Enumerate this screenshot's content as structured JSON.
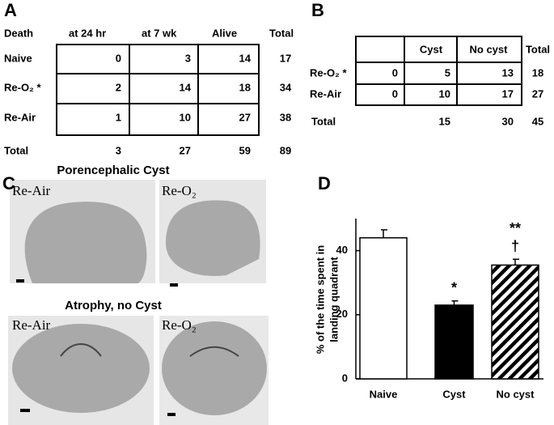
{
  "panel_a": {
    "label": "A",
    "headers": [
      "Death",
      "at 24 hr",
      "at 7 wk",
      "Alive",
      "Total"
    ],
    "rows": [
      [
        "Naive",
        0,
        3,
        14,
        17
      ],
      [
        "Re-O₂ *",
        2,
        14,
        18,
        34
      ],
      [
        "Re-Air",
        1,
        10,
        27,
        38
      ],
      [
        "Total",
        3,
        27,
        59,
        89
      ]
    ]
  },
  "panel_b": {
    "label": "B",
    "headers": [
      "Cyst",
      "No cyst",
      "Total"
    ],
    "rows": [
      [
        "Re-O₂ *",
        0,
        5,
        13,
        18
      ],
      [
        "Re-Air",
        0,
        10,
        17,
        27
      ]
    ],
    "total_row": [
      "Total",
      15,
      30,
      45
    ]
  },
  "panel_c": {
    "label": "C",
    "title_top": "Porencephalic Cyst",
    "title_bottom": "Atrophy, no Cyst",
    "image_labels": [
      "Re-Air",
      "Re-O₂",
      "Re-Air",
      "Re-O₂"
    ]
  },
  "chart_data": {
    "type": "bar",
    "label": "D",
    "y_label": [
      "% of the  time spent in",
      "landing quadrant"
    ],
    "categories": [
      "Naive",
      "Cyst",
      "No cyst"
    ],
    "values": [
      44,
      23,
      35.5
    ],
    "errors": [
      2.5,
      1.3,
      1.8
    ],
    "annotations": [
      [
        "*"
      ],
      [
        "**",
        "†"
      ]
    ],
    "ylim": [
      0,
      50
    ],
    "yticks": [
      0,
      20,
      40
    ]
  }
}
